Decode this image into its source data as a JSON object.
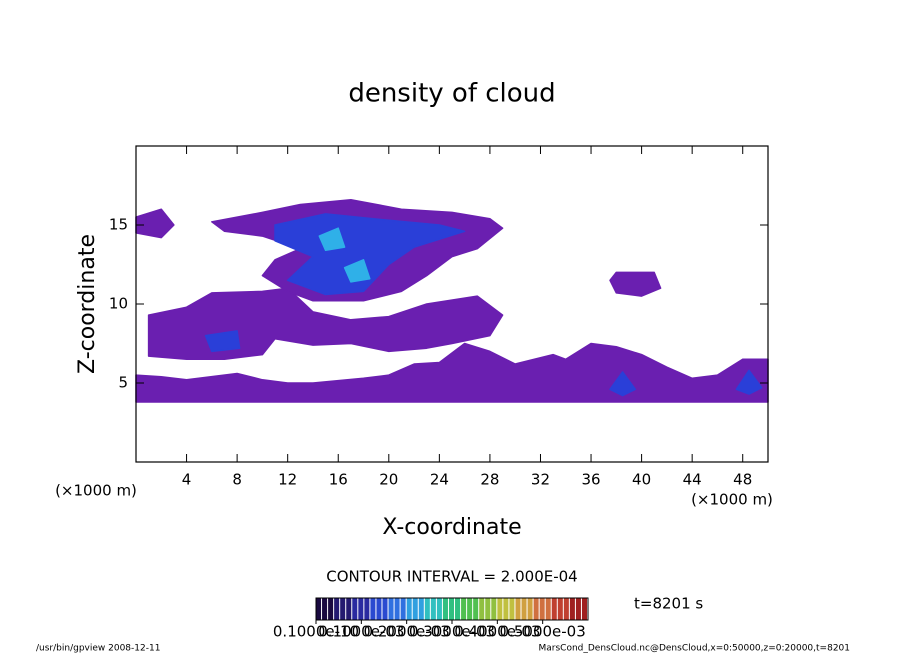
{
  "chart_data": {
    "type": "contour",
    "title": "density of cloud",
    "x_label": "X-coordinate",
    "y_label": "Z-coordinate",
    "x_unit": "(×1000 m)",
    "y_unit": "(×1000 m)",
    "xlim": [
      0,
      50
    ],
    "ylim": [
      0,
      20
    ],
    "xticks": [
      4,
      8,
      12,
      16,
      20,
      24,
      28,
      32,
      36,
      40,
      44,
      48
    ],
    "yticks": [
      5,
      10,
      15
    ],
    "contour_interval": "CONTOUR INTERVAL = 2.000E-04",
    "time_label": "t=8201 s",
    "footer_left": "/usr/bin/gpview  2008-12-11",
    "footer_right": "MarsCond_DensCloud.nc@DensCloud,x=0:50000,z=0:20000,t=8201",
    "contours": [
      {
        "level": 0.0001,
        "color": "#6a1fb0",
        "x": [
          0,
          50,
          50,
          48,
          46,
          44,
          42,
          40,
          38,
          36,
          34,
          33,
          30,
          28,
          26,
          24,
          22,
          20,
          18,
          14,
          12,
          10,
          8,
          4,
          2,
          0
        ],
        "z": [
          3.8,
          3.8,
          6.5,
          6.5,
          5.5,
          5.3,
          6,
          6.8,
          7.3,
          7.5,
          6.5,
          6.8,
          6.2,
          7,
          7.5,
          6.3,
          6.2,
          5.5,
          5.3,
          5,
          5,
          5.2,
          5.6,
          5.2,
          5.4,
          5.5
        ]
      },
      {
        "level": 0.0001,
        "color": "#6a1fb0",
        "x": [
          1,
          4,
          6,
          10,
          12,
          14,
          17,
          20,
          23,
          27,
          29,
          28,
          25,
          23,
          20,
          17,
          14,
          11,
          10,
          7,
          4,
          1,
          1
        ],
        "z": [
          9.3,
          9.8,
          10.7,
          10.8,
          11,
          9.5,
          9,
          9.2,
          10,
          10.5,
          9.3,
          8,
          7.5,
          7.2,
          7,
          7.5,
          7.4,
          7.8,
          6.8,
          6.5,
          6.5,
          6.7,
          8
        ]
      },
      {
        "level": 0.0001,
        "color": "#6a1fb0",
        "x": [
          6,
          10,
          13,
          17,
          21,
          25,
          28,
          29,
          27,
          25,
          23,
          21,
          18,
          14,
          12,
          10,
          11,
          13,
          10,
          7
        ],
        "z": [
          15.2,
          15.8,
          16.3,
          16.6,
          16,
          15.8,
          15.4,
          14.8,
          13.5,
          13,
          11.8,
          10.8,
          10.2,
          10.2,
          10.8,
          11.8,
          12.8,
          13.5,
          14.3,
          14.6
        ]
      },
      {
        "level": 0.0001,
        "color": "#6a1fb0",
        "x": [
          0,
          2,
          3,
          2,
          0
        ],
        "z": [
          15.5,
          16,
          15,
          14.2,
          14.5
        ]
      },
      {
        "level": 0.0001,
        "color": "#6a1fb0",
        "x": [
          38,
          41,
          41.5,
          40,
          38,
          37.5
        ],
        "z": [
          12,
          12,
          11,
          10.5,
          10.7,
          11.5
        ]
      },
      {
        "level": 0.0003,
        "color": "#2a3fd8",
        "x": [
          11,
          15,
          20,
          24,
          26,
          22,
          20,
          18,
          15,
          12,
          14,
          11
        ],
        "z": [
          15,
          15.7,
          15.3,
          15,
          14.6,
          13.6,
          12.5,
          10.8,
          10.6,
          11.5,
          13,
          14
        ]
      },
      {
        "level": 0.0003,
        "color": "#2a3fd8",
        "x": [
          5.5,
          8,
          8.2,
          6
        ],
        "z": [
          8,
          8.3,
          7.2,
          7
        ]
      },
      {
        "level": 0.0003,
        "color": "#2a3fd8",
        "x": [
          37.5,
          38.5,
          39.5,
          38.5
        ],
        "z": [
          4.6,
          5.7,
          4.6,
          4.2
        ]
      },
      {
        "level": 0.0003,
        "color": "#2a3fd8",
        "x": [
          47.5,
          48.5,
          49.5,
          48.5
        ],
        "z": [
          4.6,
          5.8,
          4.7,
          4.3
        ]
      },
      {
        "level": 0.0005,
        "color": "#2fb0e8",
        "x": [
          14.5,
          16,
          16.5,
          15
        ],
        "z": [
          14.3,
          14.8,
          13.6,
          13.4
        ]
      },
      {
        "level": 0.0005,
        "color": "#2fb0e8",
        "x": [
          16.5,
          18,
          18.5,
          17
        ],
        "z": [
          12.3,
          12.8,
          11.6,
          11.4
        ]
      }
    ],
    "colorbar": {
      "lim": [
        0,
        0.0006
      ],
      "colors": [
        "#1a0a40",
        "#241a70",
        "#2a2aa0",
        "#2a4ad0",
        "#3070e0",
        "#30a0e0",
        "#30c0c0",
        "#30c080",
        "#50c050",
        "#90c040",
        "#c0c040",
        "#d0a040",
        "#d07040",
        "#c04030",
        "#a02020"
      ],
      "ticks": [
        {
          "value": 1e-11,
          "label": "0.1000e-10"
        },
        {
          "value": 0.0001,
          "label": "0.1000e-03"
        },
        {
          "value": 0.0002,
          "label": "0.2000e-03"
        },
        {
          "value": 0.0003,
          "label": "0.3000e-03"
        },
        {
          "value": 0.0004,
          "label": "0.4000e-03"
        },
        {
          "value": 0.0005,
          "label": "0.5000e-03"
        }
      ]
    }
  }
}
